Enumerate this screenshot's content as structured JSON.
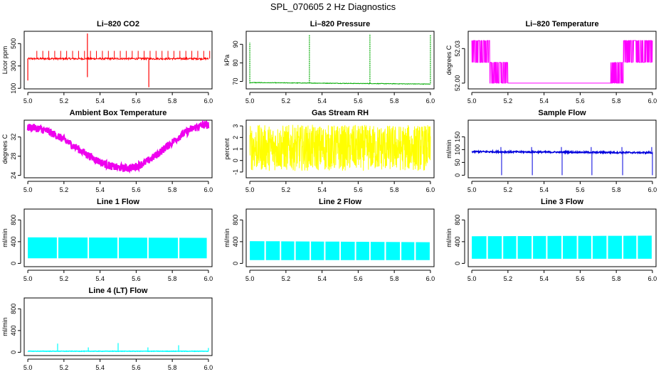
{
  "figure_title": "SPL_070605  2 Hz Diagnostics",
  "chart_data": [
    {
      "type": "line",
      "title": "Li–820 CO2",
      "xlabel": "",
      "ylabel": "Licor ppm",
      "xlim": [
        4.98,
        6.02
      ],
      "ylim": [
        95,
        610
      ],
      "xticks": [
        5.0,
        5.2,
        5.4,
        5.6,
        5.8,
        6.0
      ],
      "yticks": [
        100,
        300,
        500
      ],
      "color": "#ff0000",
      "series_style": "co2",
      "series": [
        {
          "baseline": 365,
          "noise": 8,
          "spikes": [
            {
              "x": 5.0,
              "y": 170
            },
            {
              "x": 5.33,
              "y": 590
            },
            {
              "x": 5.33,
              "y": 200
            },
            {
              "x": 5.67,
              "y": 110
            }
          ]
        }
      ]
    },
    {
      "type": "line",
      "title": "Li–820 Pressure",
      "xlabel": "",
      "ylabel": "kPa",
      "xlim": [
        4.98,
        6.02
      ],
      "ylim": [
        66,
        97
      ],
      "xticks": [
        5.0,
        5.2,
        5.4,
        5.6,
        5.8,
        6.0
      ],
      "yticks": [
        70,
        80,
        90
      ],
      "color": "#00aa00",
      "series_style": "pressure",
      "series": [
        {
          "start": 69.4,
          "end": 68.6,
          "spikes": [
            {
              "x": 5.0,
              "y": 91
            },
            {
              "x": 5.33,
              "y": 95
            },
            {
              "x": 5.665,
              "y": 95.5
            },
            {
              "x": 6.0,
              "y": 95
            }
          ]
        }
      ]
    },
    {
      "type": "line",
      "title": "Li–820 Temperature",
      "xlabel": "",
      "ylabel": "degrees C",
      "xlim": [
        4.98,
        6.02
      ],
      "ylim": [
        51.995,
        52.045
      ],
      "xticks": [
        5.0,
        5.2,
        5.4,
        5.6,
        5.8,
        6.0
      ],
      "yticks": [
        52.0,
        52.03
      ],
      "color": "#ff00ff",
      "series_style": "temperature",
      "series": [
        {
          "levels": [
            52.0,
            52.018,
            52.037
          ]
        }
      ]
    },
    {
      "type": "line",
      "title": "Ambient Box Temperature",
      "xlabel": "",
      "ylabel": "degrees C",
      "xlim": [
        4.98,
        6.02
      ],
      "ylim": [
        23.5,
        35.5
      ],
      "xticks": [
        5.0,
        5.2,
        5.4,
        5.6,
        5.8,
        6.0
      ],
      "yticks": [
        24,
        28,
        32
      ],
      "color": "#ee00ee",
      "series_style": "ambient",
      "series": [
        {
          "start": 34.0,
          "min": 25.5,
          "min_x": 5.54,
          "end": 34.5
        }
      ]
    },
    {
      "type": "line",
      "title": "Gas Stream RH",
      "xlabel": "",
      "ylabel": "percent",
      "xlim": [
        4.98,
        6.02
      ],
      "ylim": [
        -1.5,
        3.5
      ],
      "xticks": [
        5.0,
        5.2,
        5.4,
        5.6,
        5.8,
        6.0
      ],
      "yticks": [
        -1,
        0,
        1,
        2,
        3
      ],
      "color": "#ffff00",
      "series_style": "rh",
      "series": [
        {
          "center": 1.0,
          "range": [
            -0.9,
            3.1
          ]
        }
      ]
    },
    {
      "type": "line",
      "title": "Sample Flow",
      "xlabel": "",
      "ylabel": "ml/min",
      "xlim": [
        4.98,
        6.02
      ],
      "ylim": [
        -10,
        215
      ],
      "xticks": [
        5.0,
        5.2,
        5.4,
        5.6,
        5.8,
        6.0
      ],
      "yticks": [
        0,
        50,
        100,
        150
      ],
      "color": "#0000dd",
      "series_style": "sample",
      "series": [
        {
          "baseline": 92,
          "dips": [
            5.165,
            5.335,
            5.5,
            5.665,
            5.835,
            6.0
          ]
        }
      ]
    },
    {
      "type": "area",
      "title": "Line 1 Flow",
      "xlabel": "",
      "ylabel": "ml/min",
      "xlim": [
        4.98,
        6.02
      ],
      "ylim": [
        -60,
        1000
      ],
      "xticks": [
        5.0,
        5.2,
        5.4,
        5.6,
        5.8,
        6.0
      ],
      "yticks": [
        0,
        400,
        800
      ],
      "color": "#00ffff",
      "series_style": "band",
      "series": [
        {
          "low": 95,
          "top_start": 480,
          "top_end": 470,
          "gaps": [
            5.165,
            5.335,
            5.5,
            5.665,
            5.835,
            5.995
          ]
        }
      ]
    },
    {
      "type": "area",
      "title": "Line 2 Flow",
      "xlabel": "",
      "ylabel": "ml/min",
      "xlim": [
        4.98,
        6.02
      ],
      "ylim": [
        -60,
        1000
      ],
      "xticks": [
        5.0,
        5.2,
        5.4,
        5.6,
        5.8,
        6.0
      ],
      "yticks": [
        0,
        400,
        800
      ],
      "color": "#00ffff",
      "series_style": "band",
      "series": [
        {
          "low": 60,
          "top_start": 410,
          "top_end": 390,
          "gaps": [
            5.085,
            5.17,
            5.25,
            5.335,
            5.415,
            5.5,
            5.585,
            5.665,
            5.75,
            5.835,
            5.915
          ]
        }
      ]
    },
    {
      "type": "area",
      "title": "Line 3 Flow",
      "xlabel": "",
      "ylabel": "ml/min",
      "xlim": [
        4.98,
        6.02
      ],
      "ylim": [
        -60,
        1000
      ],
      "xticks": [
        5.0,
        5.2,
        5.4,
        5.6,
        5.8,
        6.0
      ],
      "yticks": [
        0,
        400,
        800
      ],
      "color": "#00ffff",
      "series_style": "band",
      "series": [
        {
          "low": 85,
          "top_start": 500,
          "top_end": 510,
          "gaps": [
            5.085,
            5.17,
            5.25,
            5.335,
            5.415,
            5.5,
            5.585,
            5.665,
            5.75,
            5.835,
            5.915
          ]
        }
      ]
    },
    {
      "type": "line",
      "title": "Line 4 (LT) Flow",
      "xlabel": "",
      "ylabel": "ml/min",
      "xlim": [
        4.98,
        6.02
      ],
      "ylim": [
        -60,
        1000
      ],
      "xticks": [
        5.0,
        5.2,
        5.4,
        5.6,
        5.8,
        6.0
      ],
      "yticks": [
        0,
        400,
        800
      ],
      "color": "#00ffff",
      "series_style": "lt",
      "series": [
        {
          "baseline": 20,
          "spikes": [
            {
              "x": 5.165,
              "y": 160
            },
            {
              "x": 5.335,
              "y": 90
            },
            {
              "x": 5.5,
              "y": 170
            },
            {
              "x": 5.665,
              "y": 90
            },
            {
              "x": 5.835,
              "y": 130
            },
            {
              "x": 6.0,
              "y": 80
            }
          ]
        }
      ]
    }
  ]
}
